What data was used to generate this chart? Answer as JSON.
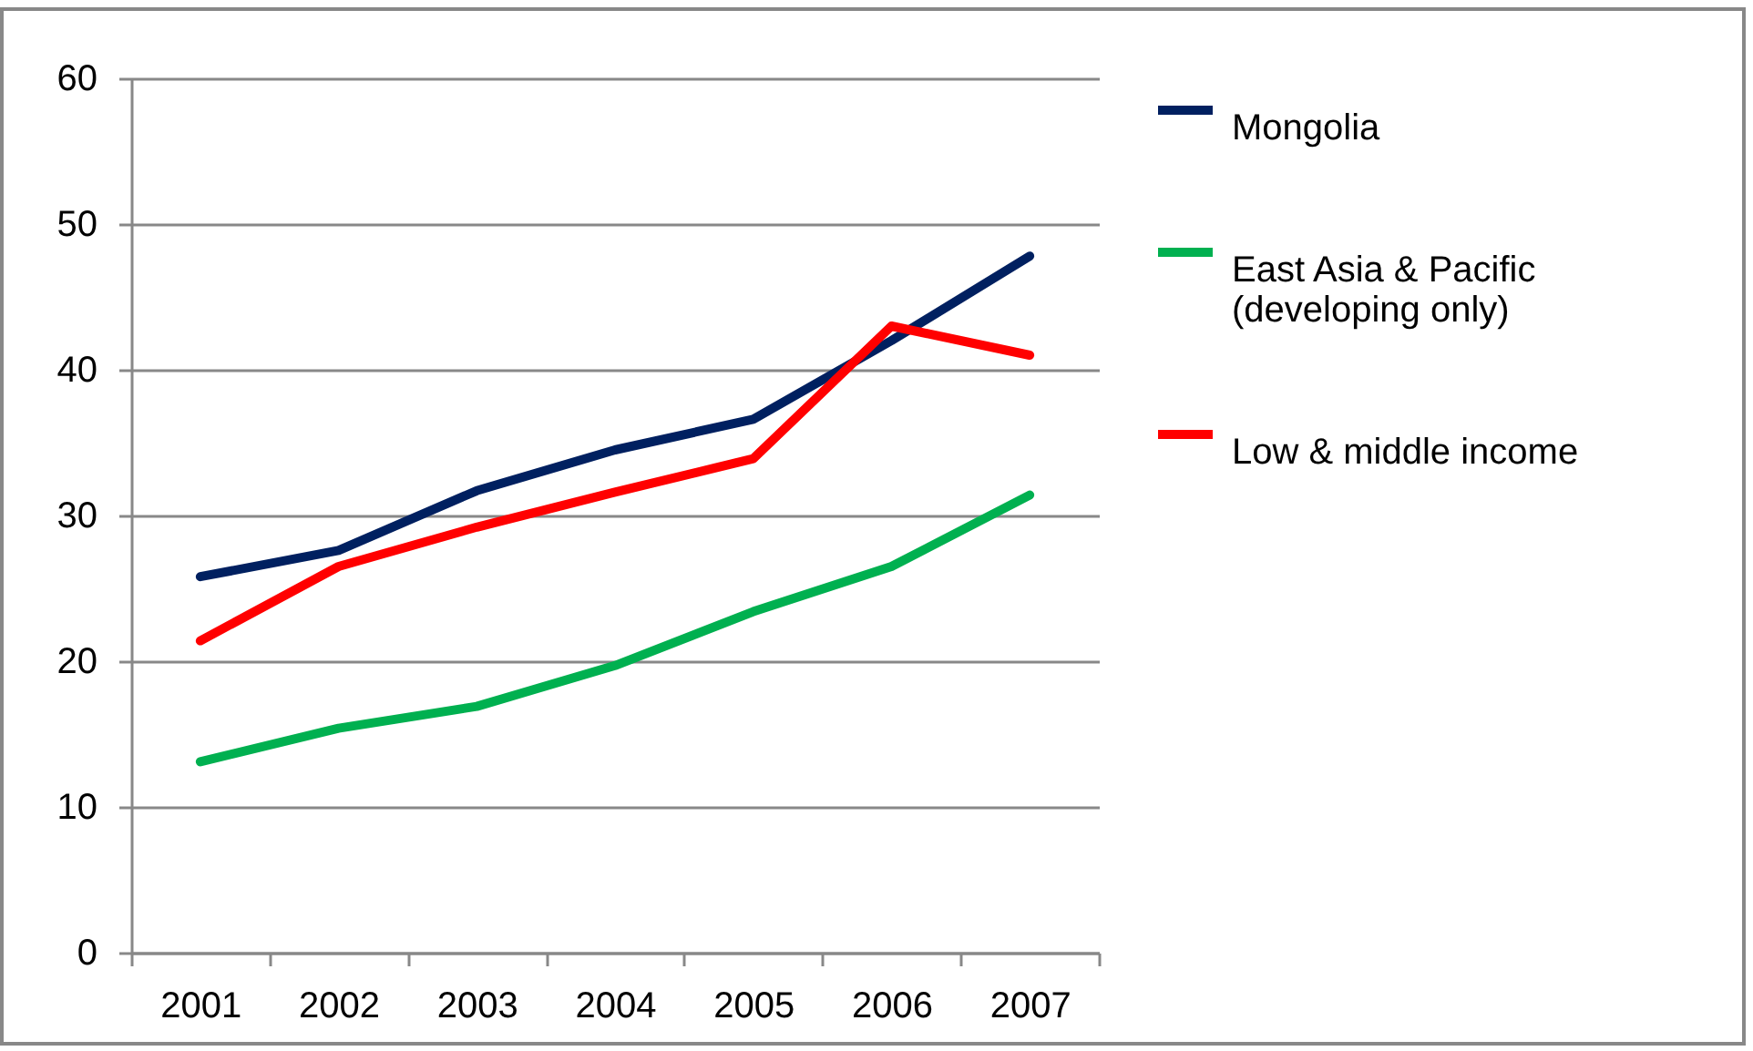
{
  "chart_data": {
    "type": "line",
    "categories": [
      "2001",
      "2002",
      "2003",
      "2004",
      "2005",
      "2006",
      "2007"
    ],
    "series": [
      {
        "name": "Mongolia",
        "color": "#002060",
        "values": [
          25.8,
          27.6,
          31.7,
          34.5,
          36.6,
          42,
          47.8
        ]
      },
      {
        "name": "East Asia & Pacific (developing only)",
        "color": "#00b050",
        "values": [
          13.1,
          15.4,
          16.9,
          19.7,
          23.4,
          26.5,
          31.4
        ]
      },
      {
        "name": "Low & middle income",
        "color": "#ff0000",
        "values": [
          21.4,
          26.5,
          29.2,
          31.6,
          33.9,
          43,
          41
        ]
      }
    ],
    "ylim": [
      0,
      60
    ],
    "yticks": [
      0,
      10,
      20,
      30,
      40,
      50,
      60
    ],
    "grid": "y",
    "legend": "right",
    "marker": "none",
    "line_style": "solid"
  }
}
